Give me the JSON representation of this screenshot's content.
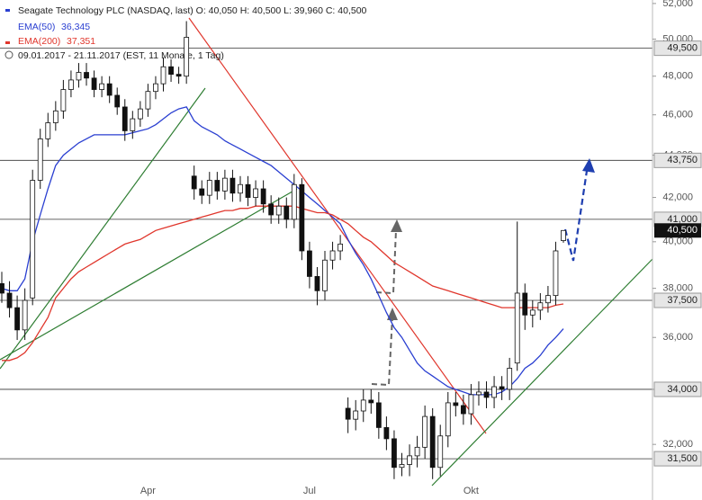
{
  "chart_data": {
    "type": "candlestick",
    "title": "Seagate Technology PLC (NASDAQ, last)  O: 40,050  H: 40,500  L: 39,960  C: 40,500",
    "subtitle": "09.01.2017 - 21.11.2017  (EST, 11 Monate, 1 Tag)",
    "categories": [
      null,
      null,
      null,
      null,
      null,
      null,
      null,
      null,
      null,
      null,
      null,
      null,
      null,
      null,
      null,
      null,
      null,
      null,
      null,
      "Apr",
      null,
      null,
      null,
      null,
      null,
      null,
      null,
      null,
      null,
      null,
      null,
      null,
      null,
      null,
      null,
      null,
      null,
      null,
      null,
      null,
      "Jul",
      null,
      null,
      null,
      null,
      null,
      null,
      null,
      null,
      null,
      null,
      null,
      null,
      null,
      null,
      null,
      null,
      null,
      null,
      null,
      null,
      "Okt",
      null,
      null,
      null,
      null,
      null,
      null,
      null,
      null,
      null,
      null,
      null,
      null
    ],
    "open": [
      38200,
      37800,
      37200,
      36300,
      37600,
      42800,
      44800,
      45600,
      46200,
      47300,
      47800,
      48200,
      47900,
      47300,
      47600,
      47000,
      46400,
      45200,
      45800,
      46300,
      47200,
      47600,
      48500,
      48100,
      48000,
      43000,
      42400,
      42100,
      42800,
      42300,
      42900,
      42200,
      42600,
      42000,
      42400,
      41700,
      41200,
      41600,
      41000,
      42600,
      39600,
      38500,
      37900,
      39200,
      39600,
      33300,
      32900,
      33200,
      33600,
      33500,
      32600,
      32200,
      31200,
      31300,
      31600,
      31900,
      33000,
      31200,
      32300,
      33500,
      33400,
      33100,
      33800,
      33900,
      33700,
      34100,
      34000,
      35000,
      37800,
      36900,
      37100,
      37400,
      37700,
      40050
    ],
    "high": [
      38700,
      38300,
      37700,
      38000,
      43300,
      45300,
      46100,
      46700,
      47800,
      48300,
      48700,
      48700,
      48300,
      48000,
      48000,
      47400,
      46800,
      46200,
      46700,
      47600,
      48000,
      49000,
      48900,
      48500,
      51000,
      43500,
      42800,
      43200,
      43200,
      43300,
      43300,
      43000,
      43000,
      42800,
      42800,
      42100,
      42000,
      42000,
      43100,
      42900,
      40000,
      38900,
      39600,
      40000,
      40300,
      33700,
      33600,
      34000,
      34000,
      33900,
      33000,
      32500,
      31700,
      32000,
      32300,
      33400,
      33300,
      32700,
      33900,
      33900,
      33800,
      34200,
      34300,
      34300,
      34500,
      34500,
      35200,
      40900,
      38200,
      37500,
      37800,
      38100,
      40000,
      40500
    ],
    "low": [
      37400,
      36800,
      35900,
      35900,
      37300,
      42400,
      44400,
      45200,
      45800,
      46900,
      47400,
      47500,
      46900,
      46900,
      46600,
      46000,
      44700,
      44800,
      45400,
      45900,
      46800,
      47200,
      47700,
      47600,
      47600,
      41900,
      41700,
      41700,
      41900,
      41900,
      41800,
      41800,
      41600,
      41600,
      41300,
      40800,
      40800,
      40600,
      40600,
      39200,
      38000,
      37300,
      37500,
      38800,
      39200,
      32400,
      32500,
      32800,
      33100,
      32200,
      31800,
      30800,
      30900,
      30900,
      31200,
      31500,
      30800,
      30900,
      31900,
      33000,
      32700,
      32700,
      33400,
      33300,
      33300,
      33600,
      33600,
      34700,
      36300,
      36400,
      36700,
      37000,
      37300,
      39960
    ],
    "close": [
      37800,
      37200,
      36300,
      37500,
      42800,
      44800,
      45600,
      46200,
      47300,
      47800,
      48200,
      47900,
      47300,
      47600,
      47000,
      46400,
      45200,
      45800,
      46300,
      47200,
      47600,
      48500,
      48100,
      48000,
      50100,
      42400,
      42100,
      42800,
      42300,
      42900,
      42200,
      42600,
      42000,
      42400,
      41700,
      41200,
      41600,
      41000,
      42600,
      39600,
      38500,
      37900,
      39200,
      39600,
      39900,
      32900,
      33200,
      33600,
      33500,
      32600,
      32200,
      31200,
      31300,
      31600,
      31900,
      33000,
      31200,
      32300,
      33500,
      33400,
      33100,
      33800,
      33900,
      33700,
      34100,
      34000,
      34800,
      37800,
      36900,
      37100,
      37400,
      37700,
      39600,
      40500
    ],
    "candle_colors": {
      "up": "#ffffff",
      "down": "#111111",
      "outline": "#111111"
    },
    "series": [
      {
        "name": "EMA(50)",
        "color": "#2a3fd1",
        "value_label": "36,345",
        "values": [
          38000,
          37900,
          37900,
          38400,
          40000,
          41200,
          42400,
          43500,
          44000,
          44300,
          44600,
          44800,
          45000,
          45000,
          45000,
          45000,
          45000,
          45100,
          45200,
          45300,
          45500,
          45800,
          46100,
          46300,
          46400,
          45700,
          45400,
          45200,
          45000,
          44700,
          44500,
          44300,
          44100,
          43900,
          43700,
          43500,
          43200,
          42900,
          42600,
          42300,
          42000,
          41700,
          41400,
          41100,
          40800,
          40100,
          39500,
          39000,
          38400,
          37700,
          37000,
          36400,
          36000,
          35500,
          35000,
          34700,
          34500,
          34300,
          34100,
          34000,
          33900,
          33800,
          33800,
          33800,
          33800,
          33900,
          34100,
          34400,
          34800,
          35000,
          35300,
          35700,
          36000,
          36345
        ]
      },
      {
        "name": "EMA(200)",
        "color": "#e0362c",
        "value_label": "37,351",
        "values": [
          35100,
          35100,
          35200,
          35400,
          35800,
          36300,
          36800,
          37600,
          38000,
          38400,
          38700,
          38900,
          39100,
          39300,
          39500,
          39700,
          39900,
          40000,
          40100,
          40300,
          40500,
          40600,
          40700,
          40800,
          40900,
          41000,
          41100,
          41200,
          41300,
          41400,
          41400,
          41500,
          41500,
          41600,
          41600,
          41600,
          41600,
          41600,
          41600,
          41500,
          41400,
          41300,
          41300,
          41200,
          41000,
          40800,
          40500,
          40200,
          40000,
          39700,
          39400,
          39100,
          38900,
          38700,
          38500,
          38300,
          38100,
          38000,
          37900,
          37800,
          37700,
          37600,
          37500,
          37400,
          37300,
          37200,
          37200,
          37200,
          37200,
          37200,
          37200,
          37200,
          37300,
          37351
        ]
      }
    ],
    "log_scale": true,
    "ylim": [
      30100,
      52200
    ],
    "yticks": [
      {
        "value": 32000,
        "label": "32,000"
      },
      {
        "value": 34000,
        "label": "34,000"
      },
      {
        "value": 36000,
        "label": "36,000"
      },
      {
        "value": 38000,
        "label": "38,000"
      },
      {
        "value": 40000,
        "label": "40,000"
      },
      {
        "value": 42000,
        "label": "42,000"
      },
      {
        "value": 44000,
        "label": "44,000"
      },
      {
        "value": 46000,
        "label": "46,000"
      },
      {
        "value": 48000,
        "label": "48,000"
      },
      {
        "value": 50000,
        "label": "50,000"
      },
      {
        "value": 52000,
        "label": "52,000"
      }
    ],
    "levels": [
      {
        "value": 49500,
        "label": "49,500"
      },
      {
        "value": 43750,
        "label": "43,750"
      },
      {
        "value": 41000,
        "label": "41,000"
      },
      {
        "value": 37500,
        "label": "37,500"
      },
      {
        "value": 34000,
        "label": "34,000"
      },
      {
        "value": 31500,
        "label": "31,500"
      }
    ],
    "last": {
      "value": 40500,
      "label": "40,500"
    }
  }
}
